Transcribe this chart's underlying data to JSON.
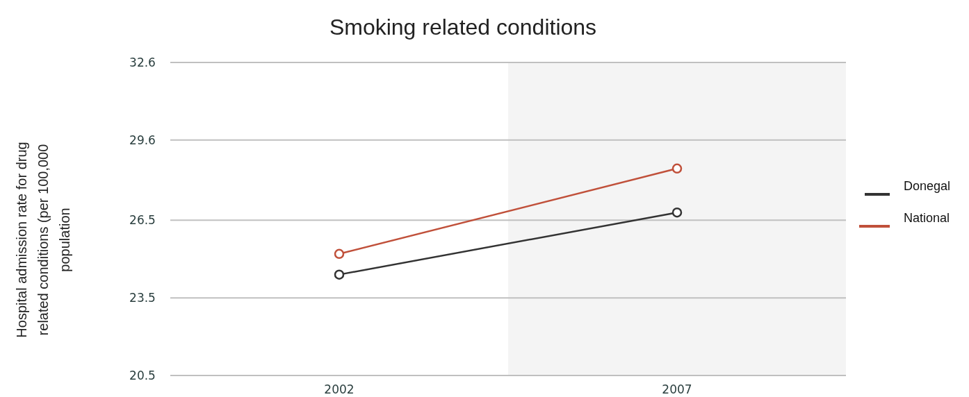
{
  "chart_data": {
    "type": "line",
    "title": "Smoking related conditions",
    "ylabel": "Hospital admission rate for drug related conditions (per 100,000 population",
    "categories": [
      "2002",
      "2007"
    ],
    "series": [
      {
        "name": "Donegal",
        "color": "#333333",
        "values": [
          24.4,
          26.8
        ]
      },
      {
        "name": "National",
        "color": "#c0503a",
        "values": [
          25.2,
          28.5
        ]
      }
    ],
    "ylim": [
      20.5,
      32.6
    ],
    "yticks": [
      20.5,
      23.5,
      26.5,
      29.6,
      32.6
    ],
    "grid": "y",
    "legend": "right",
    "marker": "circle",
    "bands": [
      {
        "axis": "x",
        "from": "2007",
        "to": "2007",
        "color": "#f4f4f4"
      }
    ]
  }
}
